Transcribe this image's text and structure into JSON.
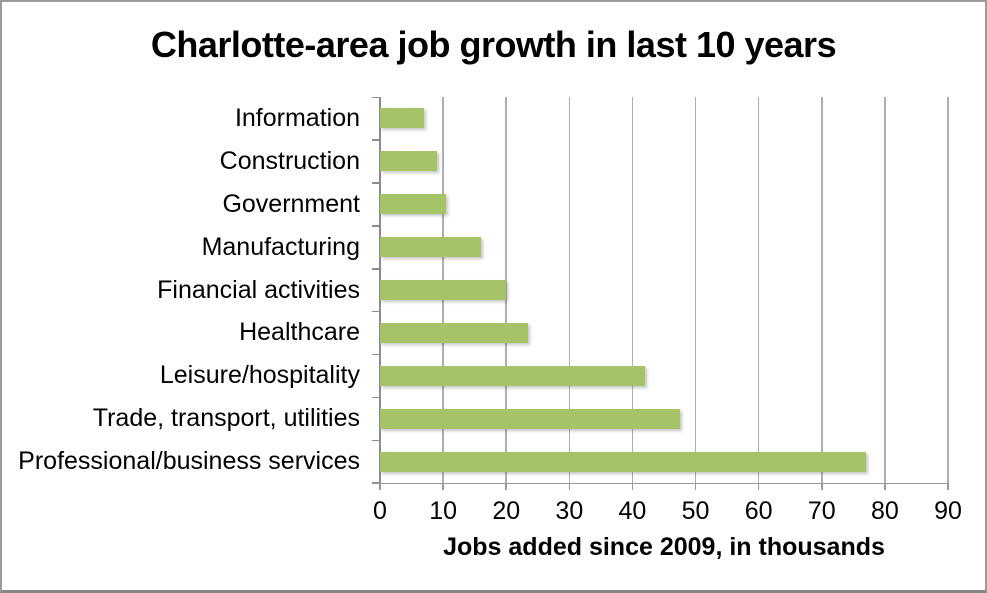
{
  "chart_data": {
    "type": "bar",
    "orientation": "horizontal",
    "title": "Charlotte-area job growth in last 10 years",
    "xlabel": "Jobs added since 2009, in thousands",
    "categories": [
      "Information",
      "Construction",
      "Government",
      "Manufacturing",
      "Financial activities",
      "Healthcare",
      "Leisure/hospitality",
      "Trade, transport, utilities",
      "Professional/business services"
    ],
    "values": [
      7,
      9,
      10.5,
      16,
      20,
      23.5,
      42,
      47.5,
      77
    ],
    "xlim": [
      0,
      90
    ],
    "xticks": [
      0,
      10,
      20,
      30,
      40,
      50,
      60,
      70,
      80,
      90
    ],
    "grid": true,
    "legend": "none",
    "colors": {
      "bar": "#a5c468",
      "gridline": "#aeaeae",
      "axis": "#8c8c8c",
      "text": "#000000",
      "background": "#ffffff",
      "frame_border": "#9a9a9a"
    }
  }
}
